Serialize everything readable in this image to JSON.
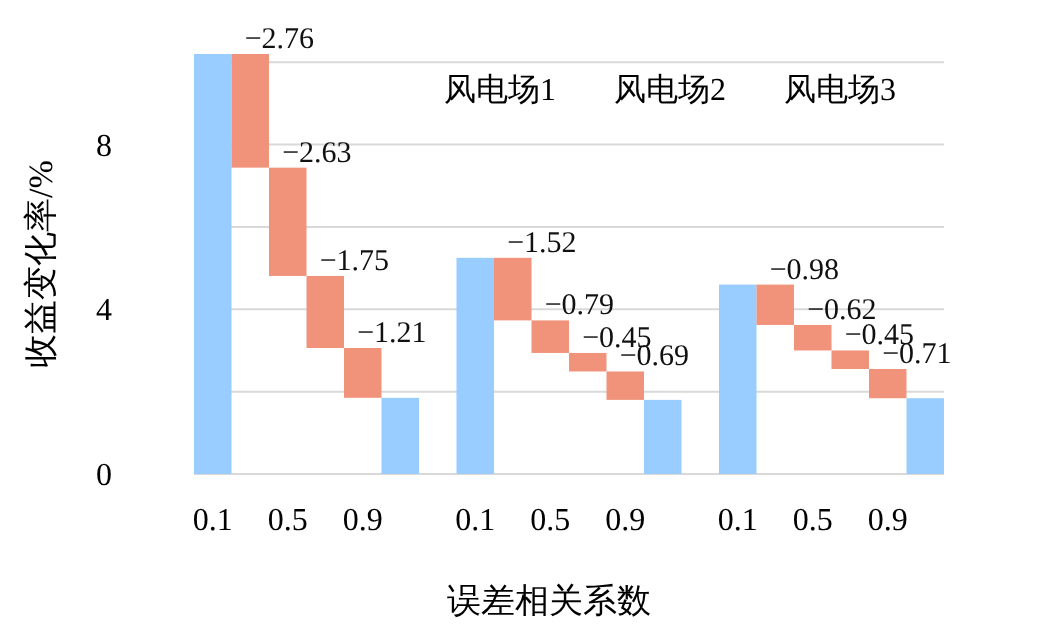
{
  "chart_data": {
    "type": "bar",
    "xlabel": "误差相关系数",
    "ylabel": "收益变化率/%",
    "categories": [
      "0.1",
      null,
      "0.5",
      null,
      "0.9",
      null,
      null,
      "0.1",
      null,
      "0.5",
      null,
      "0.9",
      null,
      null,
      "0.1",
      null,
      "0.5",
      null,
      "0.9",
      null
    ],
    "values": [
      10.2,
      -2.76,
      -2.63,
      -1.75,
      -1.21,
      1.85,
      null,
      5.25,
      -1.52,
      -0.79,
      -0.45,
      -0.69,
      1.8,
      null,
      4.6,
      -0.98,
      -0.62,
      -0.45,
      -0.71,
      1.84
    ],
    "base": [
      0,
      10.2,
      7.44,
      4.81,
      3.06,
      0,
      null,
      0,
      5.25,
      3.73,
      2.94,
      2.49,
      0,
      null,
      0,
      4.6,
      3.62,
      3.0,
      2.55,
      0
    ],
    "colors": [
      "#99ccff",
      "#f0937a",
      "#f0937a",
      "#f0937a",
      "#f0937a",
      "#99ccff",
      null,
      "#99ccff",
      "#f0937a",
      "#f0937a",
      "#f0937a",
      "#f0937a",
      "#99ccff",
      null,
      "#99ccff",
      "#f0937a",
      "#f0937a",
      "#f0937a",
      "#f0937a",
      "#99ccff"
    ],
    "value_labels": [
      null,
      "−2.76",
      "−2.63",
      "−1.75",
      "−1.21",
      null,
      null,
      null,
      "−1.52",
      "−0.79",
      "−0.45",
      "−0.69",
      null,
      null,
      null,
      "−0.98",
      "−0.62",
      "−0.45",
      "−0.71",
      null
    ],
    "ylim": [
      0,
      10.2
    ],
    "yticks": [
      0,
      {
        "value": 2,
        "label": null
      },
      4,
      {
        "value": 6,
        "label": null
      },
      8,
      {
        "value": 10,
        "label": null
      }
    ],
    "grid": "y",
    "annotations": [
      "风电场1",
      "风电场2",
      "风电场3"
    ]
  }
}
